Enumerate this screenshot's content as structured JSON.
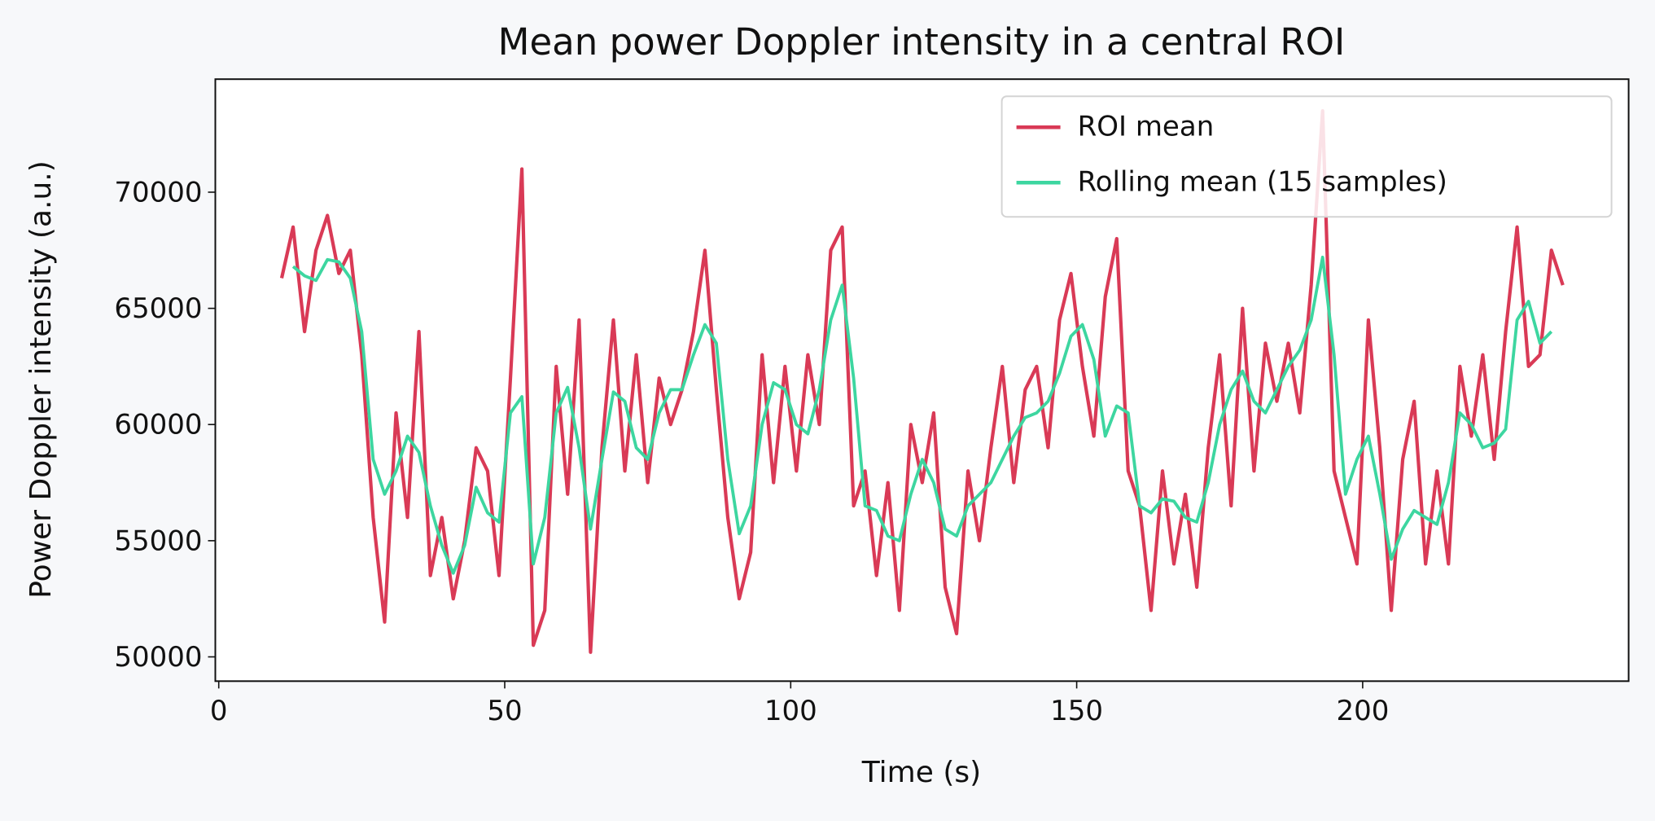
{
  "chart_data": {
    "type": "line",
    "title": "Mean power Doppler intensity in a central ROI",
    "x_label": "Time (s)",
    "y_label": "Power Doppler intensity (a.u.)",
    "x": [
      11,
      13,
      15,
      17,
      19,
      21,
      23,
      25,
      27,
      29,
      31,
      33,
      35,
      37,
      39,
      41,
      43,
      45,
      47,
      49,
      51,
      53,
      55,
      57,
      59,
      61,
      63,
      65,
      67,
      69,
      71,
      73,
      75,
      77,
      79,
      81,
      83,
      85,
      87,
      89,
      91,
      93,
      95,
      97,
      99,
      101,
      103,
      105,
      107,
      109,
      111,
      113,
      115,
      117,
      119,
      121,
      123,
      125,
      127,
      129,
      131,
      133,
      135,
      137,
      139,
      141,
      143,
      145,
      147,
      149,
      151,
      153,
      155,
      157,
      159,
      161,
      163,
      165,
      167,
      169,
      171,
      173,
      175,
      177,
      179,
      181,
      183,
      185,
      187,
      189,
      191,
      193,
      195,
      197,
      199,
      201,
      203,
      205,
      207,
      209,
      211,
      213,
      215,
      217,
      219,
      221,
      223,
      225,
      227,
      229,
      231,
      233,
      235
    ],
    "series": [
      {
        "name": "ROI mean",
        "color": "#d93a56",
        "values": [
          66300,
          68500,
          64000,
          67500,
          69000,
          66500,
          67500,
          63000,
          56000,
          51500,
          60500,
          56000,
          64000,
          53500,
          56000,
          52500,
          55000,
          59000,
          58000,
          53500,
          62000,
          71000,
          50500,
          52000,
          62500,
          57000,
          64500,
          50200,
          59000,
          64500,
          58000,
          63000,
          57500,
          62000,
          60000,
          61500,
          64000,
          67500,
          61500,
          56000,
          52500,
          54500,
          63000,
          57500,
          62500,
          58000,
          63000,
          60000,
          67500,
          68500,
          56500,
          58000,
          53500,
          57500,
          52000,
          60000,
          57500,
          60500,
          53000,
          51000,
          58000,
          55000,
          59000,
          62500,
          57500,
          61500,
          62500,
          59000,
          64500,
          66500,
          62500,
          59500,
          65500,
          68000,
          58000,
          56500,
          52000,
          58000,
          54000,
          57000,
          53000,
          59000,
          63000,
          56500,
          65000,
          58000,
          63500,
          61000,
          63500,
          60500,
          66000,
          73500,
          58000,
          56000,
          54000,
          64500,
          59000,
          52000,
          58500,
          61000,
          54000,
          58000,
          54000,
          62500,
          59500,
          63000,
          58500,
          64000,
          68500,
          62500,
          63000,
          67500,
          66000
        ]
      },
      {
        "name": "Rolling mean (15 samples)",
        "color": "#3dd6a0",
        "values": [
          null,
          66800,
          66400,
          66200,
          67100,
          67000,
          66300,
          64000,
          58500,
          57000,
          58000,
          59500,
          58800,
          56500,
          54800,
          53600,
          54800,
          57300,
          56200,
          55800,
          60500,
          61200,
          54000,
          56000,
          60500,
          61600,
          59000,
          55500,
          58500,
          61400,
          61000,
          59000,
          58500,
          60500,
          61500,
          61500,
          63000,
          64300,
          63500,
          58500,
          55300,
          56500,
          60000,
          61800,
          61500,
          60000,
          59600,
          61500,
          64500,
          66000,
          62000,
          56500,
          56300,
          55200,
          55000,
          57000,
          58500,
          57500,
          55500,
          55200,
          56500,
          57000,
          57500,
          58500,
          59500,
          60300,
          60500,
          61000,
          62200,
          63800,
          64300,
          62800,
          59500,
          60800,
          60500,
          56500,
          56200,
          56800,
          56700,
          56000,
          55800,
          57500,
          60000,
          61500,
          62300,
          61000,
          60500,
          61500,
          62500,
          63200,
          64500,
          67200,
          63000,
          57000,
          58500,
          59500,
          57000,
          54200,
          55500,
          56300,
          56000,
          55700,
          57500,
          60500,
          60000,
          59000,
          59200,
          59800,
          64500,
          65300,
          63500,
          64000,
          null
        ]
      }
    ],
    "xlim": [
      -0.6,
      246.5
    ],
    "xticks": [
      0,
      50,
      100,
      150,
      200
    ],
    "ylim": [
      48955,
      74864
    ],
    "yticks": [
      50000,
      55000,
      60000,
      65000,
      70000
    ],
    "grid": false,
    "legend": "upper right"
  }
}
